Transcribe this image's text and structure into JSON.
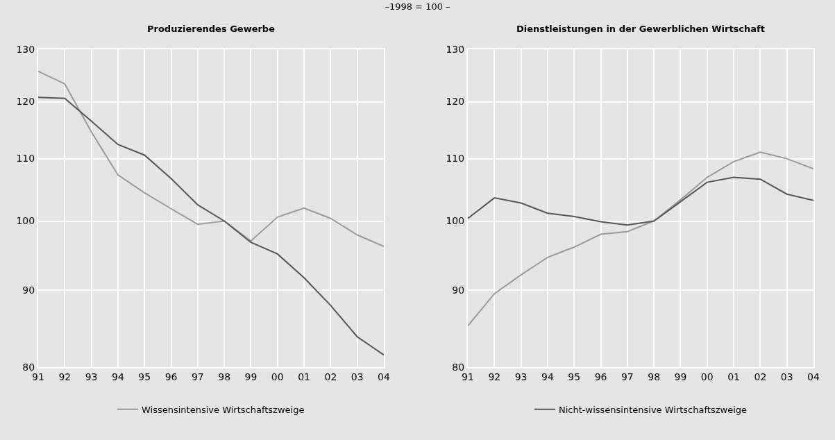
{
  "chart_data": [
    {
      "type": "line",
      "title": "Produzierendes Gewerbe",
      "subtitle": "–1998 = 100 –",
      "categories": [
        "91",
        "92",
        "93",
        "94",
        "95",
        "96",
        "97",
        "98",
        "99",
        "00",
        "01",
        "02",
        "03",
        "04"
      ],
      "series": [
        {
          "name": "Wissensintensive Wirtschaftszweige",
          "color": "#999999",
          "values": [
            125.7,
            123.3,
            114.6,
            107.3,
            104.4,
            101.9,
            99.5,
            100,
            97.0,
            100.6,
            102.0,
            100.4,
            97.9,
            96.2
          ]
        },
        {
          "color": "#555555",
          "values": [
            120.8,
            120.6,
            116.5,
            112.4,
            110.6,
            106.7,
            102.5,
            100,
            96.8,
            95.1,
            91.7,
            87.9,
            83.8,
            81.5
          ]
        }
      ],
      "ylim": [
        80,
        130
      ],
      "yticks": [
        80,
        90,
        100,
        110,
        120,
        130
      ],
      "log": "y",
      "grid": true,
      "legend": "bottom",
      "line_style": "solid"
    },
    {
      "type": "line",
      "title": "Dienstleistungen in der Gewerblichen Wirtschaft",
      "categories": [
        "91",
        "92",
        "93",
        "94",
        "95",
        "96",
        "97",
        "98",
        "99",
        "00",
        "01",
        "02",
        "03",
        "04"
      ],
      "series": [
        {
          "color": "#999999",
          "values": [
            85.2,
            89.5,
            92.1,
            94.6,
            96.1,
            98.0,
            98.4,
            100,
            103.3,
            106.9,
            109.5,
            111.1,
            110.0,
            108.3
          ]
        },
        {
          "name": "Nicht-wissensintensive Wirtschaftszweige",
          "color": "#555555",
          "values": [
            100.4,
            103.6,
            102.8,
            101.2,
            100.7,
            99.9,
            99.4,
            100,
            103.0,
            106.1,
            106.9,
            106.6,
            104.2,
            103.2
          ]
        }
      ],
      "ylim": [
        80,
        130
      ],
      "yticks": [
        80,
        90,
        100,
        110,
        120,
        130
      ],
      "log": "y",
      "grid": true,
      "legend": "bottom",
      "line_style": "solid"
    }
  ]
}
